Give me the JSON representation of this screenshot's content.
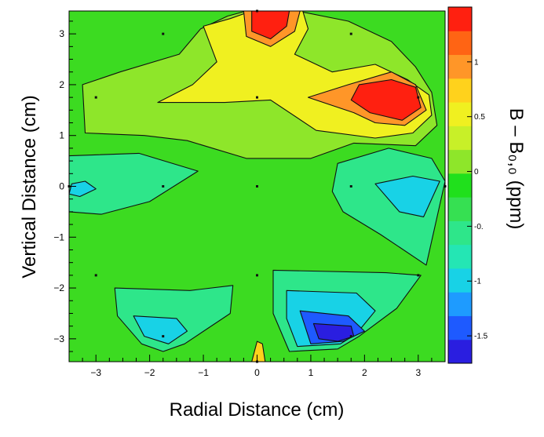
{
  "chart_data": {
    "type": "contour",
    "xlabel": "Radial Distance (cm)",
    "ylabel": "Vertical Distance (cm)",
    "colorbar_label": "B – B₀,₀ (ppm)",
    "xlim": [
      -3.5,
      3.5
    ],
    "ylim": [
      -3.45,
      3.45
    ],
    "x_ticks": [
      -3,
      -2,
      -1,
      0,
      1,
      2,
      3
    ],
    "y_ticks": [
      -3,
      -2,
      -1,
      0,
      1,
      2,
      3
    ],
    "x_tick_labels": [
      "−3",
      "−2",
      "−1",
      "0",
      "1",
      "2",
      "3"
    ],
    "y_tick_labels": [
      "−3",
      "−2",
      "−1",
      "0",
      "1",
      "2",
      "3"
    ],
    "colorbar": {
      "range": [
        -1.75,
        1.5
      ],
      "ticks": [
        -1.5,
        -1,
        -0.5,
        0,
        0.5,
        1
      ],
      "tick_labels": [
        "-1.5",
        "-1",
        "-0.",
        "0",
        "0.5",
        "1"
      ],
      "colors": [
        "#2a1ee0",
        "#1e5aff",
        "#1e9bff",
        "#18d2e6",
        "#24e6b4",
        "#2ee68a",
        "#36e052",
        "#20e01c",
        "#8ee62a",
        "#c8f028",
        "#f0f020",
        "#ffd21c",
        "#ff9628",
        "#ff6414",
        "#ff2010"
      ]
    },
    "regions": [
      {
        "level": 1.5,
        "polygon": [
          [
            -0.1,
            3.45
          ],
          [
            0.6,
            3.45
          ],
          [
            0.55,
            3.15
          ],
          [
            0.25,
            2.9
          ],
          [
            -0.1,
            3.05
          ]
        ]
      },
      {
        "level": 1.5,
        "polygon": [
          [
            1.9,
            2.0
          ],
          [
            2.5,
            2.1
          ],
          [
            2.95,
            1.95
          ],
          [
            3.05,
            1.55
          ],
          [
            2.7,
            1.3
          ],
          [
            2.1,
            1.45
          ],
          [
            1.75,
            1.7
          ]
        ]
      },
      {
        "level": 1.0,
        "polygon": [
          [
            0.95,
            1.75
          ],
          [
            1.7,
            2.0
          ],
          [
            2.5,
            2.25
          ],
          [
            2.95,
            2.0
          ],
          [
            3.15,
            1.5
          ],
          [
            2.75,
            1.2
          ],
          [
            2.2,
            1.25
          ],
          [
            1.8,
            1.45
          ]
        ]
      },
      {
        "level": 1.0,
        "polygon": [
          [
            -0.25,
            3.45
          ],
          [
            0.8,
            3.45
          ],
          [
            0.7,
            3.05
          ],
          [
            0.25,
            2.75
          ],
          [
            -0.2,
            2.95
          ]
        ]
      },
      {
        "level": 0.5,
        "polygon": [
          [
            -1.0,
            3.15
          ],
          [
            -0.5,
            3.3
          ],
          [
            -0.1,
            3.45
          ],
          [
            0.85,
            3.45
          ],
          [
            0.95,
            3.1
          ],
          [
            0.7,
            2.6
          ],
          [
            1.4,
            2.25
          ],
          [
            2.2,
            2.4
          ],
          [
            2.8,
            2.1
          ],
          [
            3.2,
            1.8
          ],
          [
            3.25,
            1.4
          ],
          [
            2.9,
            1.05
          ],
          [
            2.2,
            0.95
          ],
          [
            1.1,
            1.1
          ],
          [
            0.25,
            1.7
          ],
          [
            -0.6,
            1.65
          ],
          [
            -1.85,
            1.65
          ],
          [
            -1.2,
            2.0
          ],
          [
            -0.75,
            2.45
          ]
        ]
      },
      {
        "level": 0.0,
        "polygon": [
          [
            -3.25,
            2.0
          ],
          [
            -2.55,
            2.25
          ],
          [
            -1.45,
            2.6
          ],
          [
            -1.05,
            3.1
          ],
          [
            -0.55,
            3.35
          ],
          [
            -0.2,
            3.45
          ],
          [
            0.75,
            3.45
          ],
          [
            1.7,
            3.25
          ],
          [
            2.5,
            2.85
          ],
          [
            2.95,
            2.35
          ],
          [
            3.25,
            1.85
          ],
          [
            3.35,
            1.2
          ],
          [
            2.95,
            0.8
          ],
          [
            1.8,
            0.85
          ],
          [
            1.0,
            0.55
          ],
          [
            -0.2,
            0.55
          ],
          [
            -1.3,
            0.9
          ],
          [
            -2.1,
            1.0
          ],
          [
            -3.2,
            1.05
          ]
        ]
      },
      {
        "level": -0.5,
        "polygon": [
          [
            -3.5,
            0.6
          ],
          [
            -2.2,
            0.65
          ],
          [
            -1.1,
            0.3
          ],
          [
            -2.0,
            -0.3
          ],
          [
            -2.9,
            -0.55
          ],
          [
            -3.5,
            -0.5
          ]
        ]
      },
      {
        "level": -0.5,
        "polygon": [
          [
            1.5,
            0.45
          ],
          [
            2.45,
            0.75
          ],
          [
            3.25,
            0.55
          ],
          [
            3.5,
            0.1
          ],
          [
            3.15,
            -1.55
          ],
          [
            2.3,
            -0.95
          ],
          [
            1.6,
            -0.5
          ],
          [
            1.4,
            -0.1
          ]
        ]
      },
      {
        "level": -0.5,
        "polygon": [
          [
            -2.65,
            -2.0
          ],
          [
            -1.25,
            -2.05
          ],
          [
            -0.45,
            -1.95
          ],
          [
            -0.5,
            -2.5
          ],
          [
            -1.35,
            -3.1
          ],
          [
            -1.75,
            -3.25
          ],
          [
            -2.15,
            -3.1
          ],
          [
            -2.6,
            -2.55
          ]
        ]
      },
      {
        "level": -0.5,
        "polygon": [
          [
            0.3,
            -1.65
          ],
          [
            2.4,
            -1.7
          ],
          [
            3.05,
            -1.75
          ],
          [
            2.6,
            -2.4
          ],
          [
            1.9,
            -2.95
          ],
          [
            1.5,
            -3.2
          ],
          [
            0.6,
            -3.25
          ],
          [
            0.3,
            -2.5
          ]
        ]
      },
      {
        "level": -1.0,
        "polygon": [
          [
            -3.45,
            0.05
          ],
          [
            -3.2,
            0.1
          ],
          [
            -3.0,
            -0.05
          ],
          [
            -3.3,
            -0.2
          ],
          [
            -3.5,
            -0.15
          ]
        ]
      },
      {
        "level": -1.0,
        "polygon": [
          [
            2.2,
            0.05
          ],
          [
            2.9,
            0.2
          ],
          [
            3.4,
            0.1
          ],
          [
            3.1,
            -0.6
          ],
          [
            2.65,
            -0.5
          ]
        ]
      },
      {
        "level": -1.0,
        "polygon": [
          [
            -2.3,
            -2.55
          ],
          [
            -1.5,
            -2.6
          ],
          [
            -1.3,
            -2.85
          ],
          [
            -1.65,
            -3.1
          ],
          [
            -2.1,
            -2.95
          ]
        ]
      },
      {
        "level": -1.0,
        "polygon": [
          [
            0.55,
            -2.05
          ],
          [
            1.85,
            -2.1
          ],
          [
            2.2,
            -2.45
          ],
          [
            1.85,
            -2.9
          ],
          [
            1.55,
            -3.1
          ],
          [
            0.75,
            -3.15
          ],
          [
            0.55,
            -2.6
          ]
        ]
      },
      {
        "level": -1.5,
        "polygon": [
          [
            0.8,
            -2.45
          ],
          [
            1.7,
            -2.55
          ],
          [
            2.0,
            -2.85
          ],
          [
            1.6,
            -3.05
          ],
          [
            1.0,
            -3.1
          ]
        ]
      },
      {
        "level": -1.75,
        "polygon": [
          [
            1.05,
            -2.7
          ],
          [
            1.75,
            -2.75
          ],
          [
            1.8,
            -2.95
          ],
          [
            1.5,
            -3.05
          ],
          [
            1.15,
            -3.0
          ]
        ]
      },
      {
        "level": 0.75,
        "polygon": [
          [
            -0.1,
            -3.45
          ],
          [
            0.15,
            -3.45
          ],
          [
            0.1,
            -3.1
          ],
          [
            0.0,
            -3.05
          ]
        ]
      }
    ],
    "measurement_points": [
      [
        0,
        3.45
      ],
      [
        -1.75,
        3.0
      ],
      [
        1.75,
        3.0
      ],
      [
        -3.0,
        1.75
      ],
      [
        0,
        1.75
      ],
      [
        3.0,
        1.75
      ],
      [
        -3.5,
        0
      ],
      [
        -1.75,
        0
      ],
      [
        0,
        0
      ],
      [
        1.75,
        0
      ],
      [
        3.5,
        0
      ],
      [
        -3.0,
        -1.75
      ],
      [
        0,
        -1.75
      ],
      [
        3.0,
        -1.75
      ],
      [
        -1.75,
        -2.95
      ],
      [
        1.75,
        -2.95
      ],
      [
        0,
        -3.45
      ]
    ]
  }
}
